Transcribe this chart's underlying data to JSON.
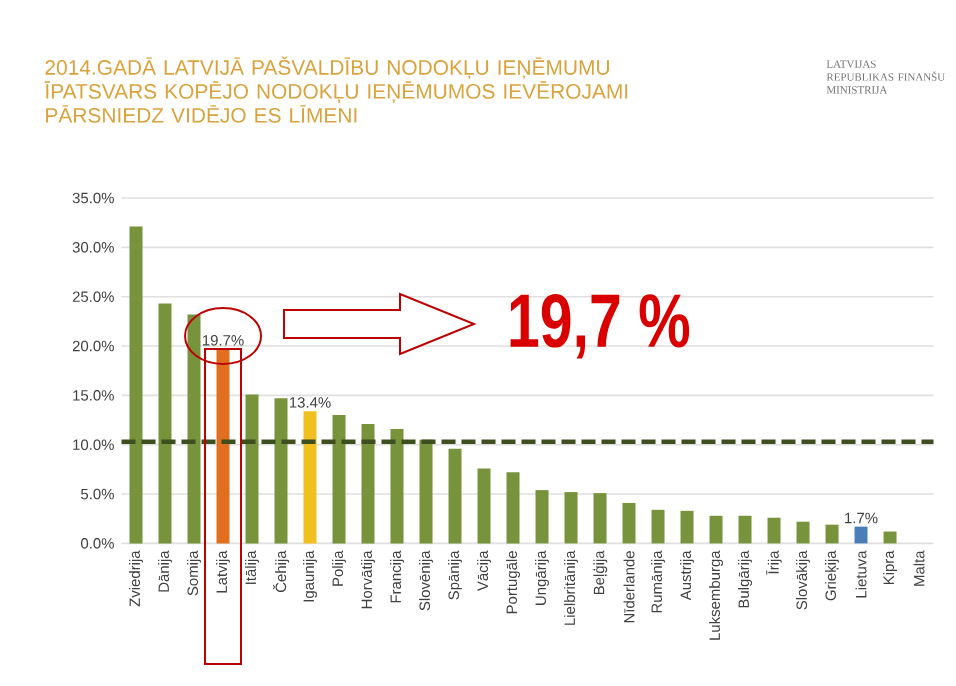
{
  "chart_data": {
    "type": "bar",
    "title": "2014.GADĀ LATVIJĀ PAŠVALDĪBU NODOKĻU IEŅĒMUMU ĪPATSVARS KOPĒJO NODOKĻU IEŅĒMUMOS IEVĒROJAMI PĀRSNIEDZ VIDĒJO ES LĪMENI",
    "categories": [
      "Zviedrija",
      "Dānija",
      "Somija",
      "Latvija",
      "Itālija",
      "Čehija",
      "Igaunija",
      "Polija",
      "Horvātija",
      "Francija",
      "Slovēnija",
      "Spānija",
      "Vācija",
      "Portugāle",
      "Ungārija",
      "Lielbritānija",
      "Beļģija",
      "Nīderlande",
      "Rumānija",
      "Austrija",
      "Luksemburga",
      "Bulgārija",
      "Īrija",
      "Slovākija",
      "Grieķija",
      "Lietuva",
      "Kipra",
      "Malta"
    ],
    "values": [
      32.1,
      24.3,
      23.2,
      19.7,
      15.1,
      14.7,
      13.4,
      13.0,
      12.1,
      11.6,
      10.5,
      9.6,
      7.6,
      7.2,
      5.4,
      5.2,
      5.1,
      4.1,
      3.4,
      3.3,
      2.8,
      2.8,
      2.6,
      2.2,
      1.9,
      1.7,
      1.2,
      null
    ],
    "colors": [
      "#77933c",
      "#77933c",
      "#77933c",
      "#e07020",
      "#77933c",
      "#77933c",
      "#f0c020",
      "#77933c",
      "#77933c",
      "#77933c",
      "#77933c",
      "#77933c",
      "#77933c",
      "#77933c",
      "#77933c",
      "#77933c",
      "#77933c",
      "#77933c",
      "#77933c",
      "#77933c",
      "#77933c",
      "#77933c",
      "#77933c",
      "#77933c",
      "#77933c",
      "#4a7ebb",
      "#77933c",
      "#77933c"
    ],
    "value_labels": [
      null,
      null,
      null,
      "19.7%",
      null,
      null,
      "13.4%",
      null,
      null,
      null,
      null,
      null,
      null,
      null,
      null,
      null,
      null,
      null,
      null,
      null,
      null,
      null,
      null,
      null,
      null,
      "1.7%",
      null,
      null
    ],
    "ylim": [
      0,
      35
    ],
    "yticks": [
      {
        "value": 0,
        "label": "0.0%"
      },
      {
        "value": 5,
        "label": "5.0%"
      },
      {
        "value": 10,
        "label": "10.0%"
      },
      {
        "value": 15,
        "label": "15.0%"
      },
      {
        "value": 20,
        "label": "20.0%"
      },
      {
        "value": 25,
        "label": "25.0%"
      },
      {
        "value": 30,
        "label": "30.0%"
      },
      {
        "value": 35,
        "label": "35.0%"
      }
    ],
    "grid": "y",
    "ref_lines": [
      {
        "axis": "y",
        "value": 10.3,
        "color": "#3d4f1f",
        "line_style": "dashed"
      }
    ],
    "annotations": [
      "19,7 %",
      "LATVIJAS REPUBLIKAS FINANŠU MINISTRIJA"
    ]
  }
}
